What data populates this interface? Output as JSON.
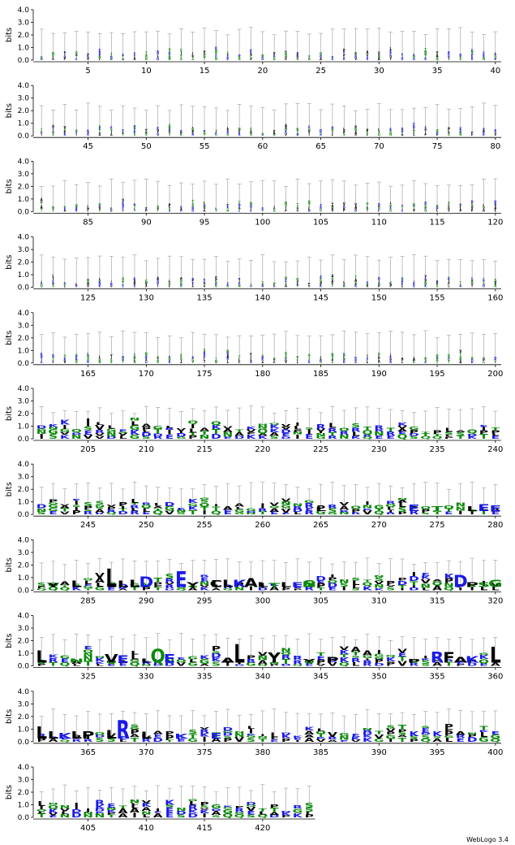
{
  "footer": {
    "credit": "WebLogo 3.4"
  },
  "colors": {
    "hydrophobic": "#000000",
    "polar": "#0a8a0a",
    "basic": "#1a1ae6",
    "acidic": "#1a1ae6",
    "other": "#777777",
    "errorbar": "#9a9a9a"
  },
  "chart_data": {
    "type": "sequence_logo",
    "ylabel": "bits",
    "ylim": [
      0,
      4.0
    ],
    "yticks": [
      "0.0",
      "1.0",
      "2.0",
      "3.0",
      "4.0"
    ],
    "xticks": [
      5,
      10,
      15,
      20,
      25,
      30,
      35,
      40,
      45,
      50,
      55,
      60,
      65,
      70,
      75,
      80,
      85,
      90,
      95,
      100,
      105,
      110,
      115,
      120,
      125,
      130,
      135,
      140,
      145,
      150,
      155,
      160,
      165,
      170,
      175,
      180,
      185,
      190,
      195,
      200,
      205,
      210,
      215,
      220,
      225,
      230,
      235,
      240,
      245,
      250,
      255,
      260,
      265,
      270,
      275,
      280,
      285,
      290,
      295,
      300,
      305,
      310,
      315,
      320,
      325,
      330,
      335,
      340,
      345,
      350,
      355,
      360,
      365,
      370,
      375,
      380,
      385,
      390,
      395,
      400,
      405,
      410,
      415,
      420
    ],
    "rows": [
      {
        "start": 1,
        "end": 40,
        "letters": []
      },
      {
        "start": 41,
        "end": 80,
        "letters": []
      },
      {
        "start": 81,
        "end": 120,
        "letters": []
      },
      {
        "start": 121,
        "end": 160,
        "letters": []
      },
      {
        "start": 161,
        "end": 200,
        "letters": []
      },
      {
        "start": 201,
        "end": 240,
        "letters": []
      },
      {
        "start": 241,
        "end": 280,
        "letters": [
          {
            "pos": 265,
            "letter": "L",
            "height": 0.35
          },
          {
            "pos": 273,
            "letter": "E",
            "height": 0.5
          },
          {
            "pos": 275,
            "letter": "T",
            "height": 0.4
          },
          {
            "pos": 278,
            "letter": "L",
            "height": 0.4
          },
          {
            "pos": 279,
            "letter": "E",
            "height": 0.55
          },
          {
            "pos": 280,
            "letter": "E",
            "height": 0.45
          }
        ]
      },
      {
        "start": 281,
        "end": 320,
        "letters": [
          {
            "pos": 282,
            "letter": "Y",
            "height": 0.35
          },
          {
            "pos": 284,
            "letter": "L",
            "height": 0.5
          },
          {
            "pos": 287,
            "letter": "L",
            "height": 1.5
          },
          {
            "pos": 288,
            "letter": "L",
            "height": 0.5
          },
          {
            "pos": 289,
            "letter": "L",
            "height": 0.6
          },
          {
            "pos": 290,
            "letter": "D",
            "height": 0.85
          },
          {
            "pos": 293,
            "letter": "E",
            "height": 1.3
          },
          {
            "pos": 294,
            "letter": "Y",
            "height": 0.4
          },
          {
            "pos": 296,
            "letter": "C",
            "height": 0.55
          },
          {
            "pos": 296,
            "letter": "L",
            "height": 0.55
          },
          {
            "pos": 297,
            "letter": "L",
            "height": 0.6
          },
          {
            "pos": 298,
            "letter": "K",
            "height": 0.6
          },
          {
            "pos": 299,
            "letter": "A",
            "height": 0.75
          },
          {
            "pos": 300,
            "letter": "L",
            "height": 0.4
          },
          {
            "pos": 301,
            "letter": "T",
            "height": 0.35
          },
          {
            "pos": 302,
            "letter": "L",
            "height": 0.4
          },
          {
            "pos": 303,
            "letter": "E",
            "height": 0.4
          },
          {
            "pos": 304,
            "letter": "S",
            "height": 0.55
          },
          {
            "pos": 304,
            "letter": "N",
            "height": 0.45
          },
          {
            "pos": 317,
            "letter": "D",
            "height": 1.0
          },
          {
            "pos": 318,
            "letter": "P",
            "height": 0.4
          },
          {
            "pos": 319,
            "letter": "S",
            "height": 0.4
          },
          {
            "pos": 320,
            "letter": "G",
            "height": 0.6
          }
        ]
      },
      {
        "start": 321,
        "end": 360,
        "letters": [
          {
            "pos": 321,
            "letter": "L",
            "height": 1.0
          },
          {
            "pos": 324,
            "letter": "N",
            "height": 0.35
          },
          {
            "pos": 327,
            "letter": "V",
            "height": 0.7
          },
          {
            "pos": 328,
            "letter": "E",
            "height": 0.6
          },
          {
            "pos": 330,
            "letter": "L",
            "height": 0.35
          },
          {
            "pos": 331,
            "letter": "Q",
            "height": 1.1
          },
          {
            "pos": 332,
            "letter": "E",
            "height": 0.7
          },
          {
            "pos": 337,
            "letter": "A",
            "height": 0.4
          },
          {
            "pos": 338,
            "letter": "L",
            "height": 1.5
          },
          {
            "pos": 341,
            "letter": "Y",
            "height": 0.8
          },
          {
            "pos": 344,
            "letter": "Y",
            "height": 0.3
          },
          {
            "pos": 346,
            "letter": "P",
            "height": 0.45
          },
          {
            "pos": 353,
            "letter": "P",
            "height": 0.3
          },
          {
            "pos": 355,
            "letter": "R",
            "height": 0.9
          },
          {
            "pos": 356,
            "letter": "F",
            "height": 0.85
          },
          {
            "pos": 357,
            "letter": "A",
            "height": 0.45
          },
          {
            "pos": 358,
            "letter": "K",
            "height": 0.5
          },
          {
            "pos": 360,
            "letter": "L",
            "height": 1.3
          }
        ]
      },
      {
        "start": 361,
        "end": 400,
        "letters": [
          {
            "pos": 361,
            "letter": "L",
            "height": 1.0
          },
          {
            "pos": 362,
            "letter": "L",
            "height": 0.6
          },
          {
            "pos": 363,
            "letter": "K",
            "height": 0.45
          },
          {
            "pos": 364,
            "letter": "L",
            "height": 0.6
          },
          {
            "pos": 365,
            "letter": "P",
            "height": 0.6
          },
          {
            "pos": 367,
            "letter": "L",
            "height": 0.7
          },
          {
            "pos": 368,
            "letter": "R",
            "height": 1.5
          },
          {
            "pos": 370,
            "letter": "L",
            "height": 0.55
          },
          {
            "pos": 373,
            "letter": "K",
            "height": 0.4
          },
          {
            "pos": 376,
            "letter": "E",
            "height": 0.45
          }
        ]
      },
      {
        "start": 401,
        "end": 424,
        "letters": []
      }
    ]
  }
}
